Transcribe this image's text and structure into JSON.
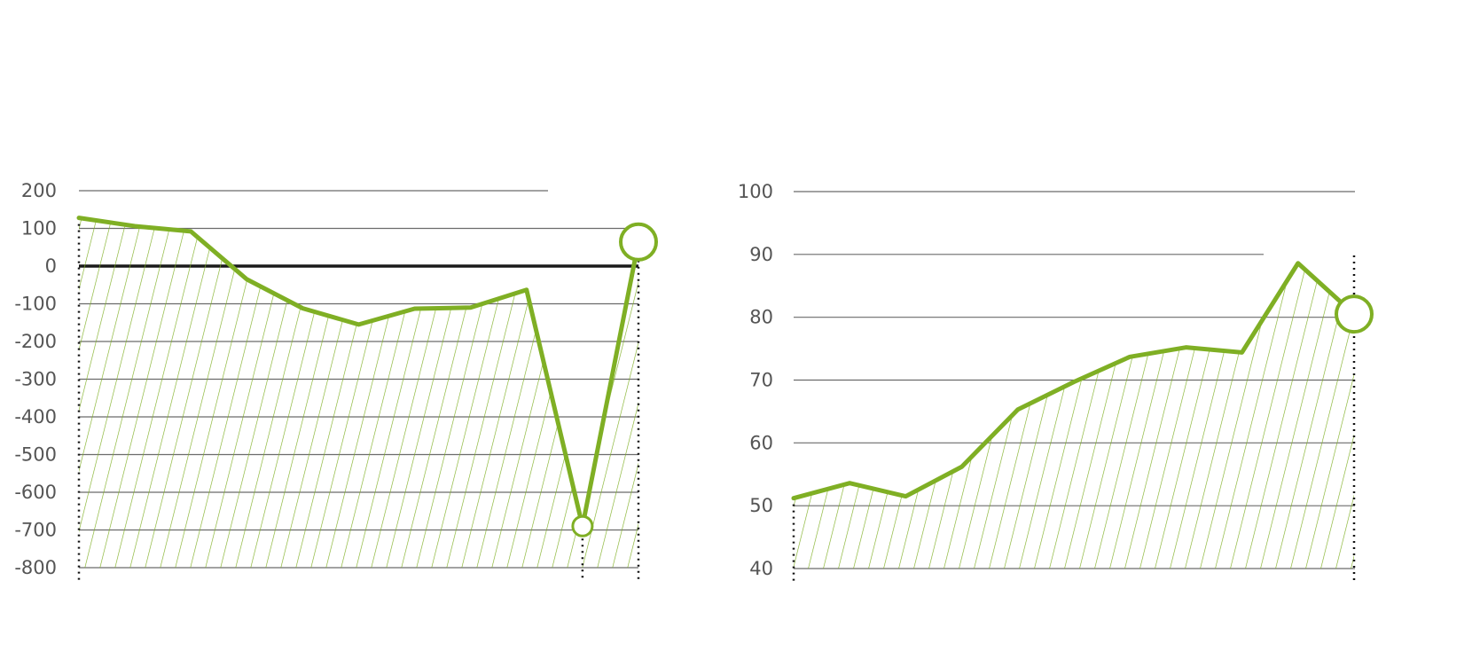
{
  "colors": {
    "series": "#7faf24",
    "grid": "#6b6b6b",
    "zero": "#1a1a1a",
    "tick": "#555555"
  },
  "chart_data": [
    {
      "type": "area",
      "hatched_fill": true,
      "grid": true,
      "ylim": [
        -800,
        200
      ],
      "yticks": [
        "200",
        "100",
        "0",
        "-100",
        "-200",
        "-300",
        "-400",
        "-500",
        "-600",
        "-700",
        "-800"
      ],
      "series": [
        {
          "values": [
            128,
            106,
            92,
            -35,
            -112,
            -155,
            -113,
            -110,
            -63,
            -690,
            64
          ]
        }
      ],
      "markers": [
        {
          "index": 9,
          "size": "small"
        },
        {
          "index": 10,
          "size": "large"
        }
      ]
    },
    {
      "type": "area",
      "hatched_fill": true,
      "grid": true,
      "ylim": [
        40,
        100
      ],
      "yticks": [
        "100",
        "90",
        "80",
        "70",
        "60",
        "50",
        "40"
      ],
      "series": [
        {
          "values": [
            51.2,
            53.6,
            51.5,
            56.2,
            65.3,
            69.7,
            73.7,
            75.2,
            74.4,
            88.6,
            80.5
          ]
        }
      ],
      "markers": [
        {
          "index": 10,
          "size": "large"
        }
      ]
    }
  ]
}
